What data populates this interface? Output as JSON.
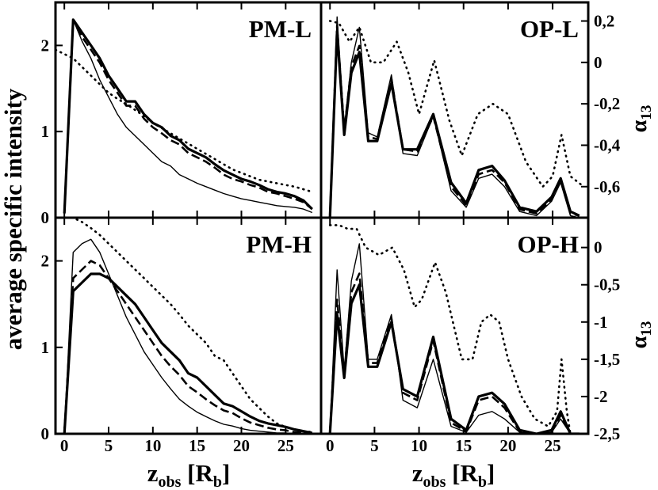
{
  "figure": {
    "ylabel_left": "average specific intensity",
    "xlabel_main": "z",
    "xlabel_sub": "obs",
    "xlabel_unit_open": " [R",
    "xlabel_unit_sub": "b",
    "xlabel_unit_close": "]",
    "ylabel_right_main": "α",
    "ylabel_right_sub": "13"
  },
  "chart_data": [
    {
      "type": "line",
      "panel": "top-left",
      "title": "PM-L",
      "xlim": [
        -1,
        29
      ],
      "ylim": [
        0,
        2.5
      ],
      "xticks": [
        0,
        5,
        10,
        15,
        20,
        25
      ],
      "yticks": [
        0,
        1,
        2
      ],
      "xtick_labels": [
        "0",
        "5",
        "10",
        "15",
        "20",
        "25"
      ],
      "ytick_labels": [
        "0",
        "1",
        "2"
      ],
      "series": [
        {
          "style": "thick",
          "x": [
            0,
            1,
            2,
            3,
            4,
            5,
            6,
            7,
            8,
            9,
            10,
            11,
            12,
            13,
            14,
            15,
            16,
            17,
            18,
            19,
            20,
            21,
            22,
            23,
            24,
            25,
            26,
            27,
            28
          ],
          "y": [
            0.05,
            2.3,
            2.15,
            2.0,
            1.85,
            1.65,
            1.5,
            1.35,
            1.35,
            1.2,
            1.1,
            1.05,
            0.95,
            0.9,
            0.8,
            0.75,
            0.7,
            0.62,
            0.55,
            0.5,
            0.45,
            0.42,
            0.38,
            0.33,
            0.3,
            0.28,
            0.25,
            0.2,
            0.1
          ]
        },
        {
          "style": "dashed",
          "x": [
            0,
            1,
            2,
            3,
            4,
            5,
            6,
            7,
            8,
            9,
            10,
            11,
            12,
            13,
            14,
            15,
            16,
            17,
            18,
            19,
            20,
            21,
            22,
            23,
            24,
            25,
            26,
            27,
            28
          ],
          "y": [
            0.05,
            2.3,
            2.1,
            1.95,
            1.8,
            1.6,
            1.45,
            1.3,
            1.3,
            1.15,
            1.05,
            0.98,
            0.9,
            0.85,
            0.75,
            0.7,
            0.65,
            0.58,
            0.5,
            0.45,
            0.42,
            0.38,
            0.35,
            0.3,
            0.28,
            0.25,
            0.22,
            0.18,
            0.1
          ]
        },
        {
          "style": "thin",
          "x": [
            0,
            1,
            2,
            3,
            4,
            5,
            6,
            7,
            8,
            9,
            10,
            11,
            12,
            13,
            14,
            15,
            16,
            17,
            18,
            19,
            20,
            21,
            22,
            23,
            24,
            25,
            26,
            27,
            28
          ],
          "y": [
            0.05,
            2.3,
            2.05,
            1.85,
            1.6,
            1.4,
            1.2,
            1.05,
            0.95,
            0.85,
            0.75,
            0.65,
            0.6,
            0.5,
            0.45,
            0.4,
            0.36,
            0.32,
            0.28,
            0.25,
            0.22,
            0.2,
            0.18,
            0.16,
            0.14,
            0.13,
            0.12,
            0.1,
            0.06
          ]
        },
        {
          "style": "dotted",
          "x": [
            -1,
            0,
            1,
            2,
            3,
            4,
            5,
            6,
            7,
            8,
            9,
            10,
            11,
            12,
            13,
            14,
            15,
            16,
            17,
            18,
            19,
            20,
            21,
            22,
            23,
            24,
            25,
            26,
            27,
            28
          ],
          "y": [
            1.95,
            1.9,
            1.85,
            1.75,
            1.65,
            1.55,
            1.45,
            1.38,
            1.32,
            1.25,
            1.18,
            1.1,
            1.04,
            0.98,
            0.92,
            0.86,
            0.8,
            0.74,
            0.68,
            0.62,
            0.56,
            0.52,
            0.48,
            0.44,
            0.42,
            0.4,
            0.38,
            0.36,
            0.33,
            0.3
          ]
        }
      ]
    },
    {
      "type": "line",
      "panel": "top-right",
      "title": "OP-L",
      "xlim": [
        -1,
        29
      ],
      "ylim": [
        -0.75,
        0.29
      ],
      "xticks": [
        0,
        5,
        10,
        15,
        20,
        25
      ],
      "yticks": [
        -0.6,
        -0.4,
        -0.2,
        0,
        0.2
      ],
      "xtick_labels": [
        "0",
        "5",
        "10",
        "15",
        "20",
        "25"
      ],
      "ytick_labels": [
        "-0,6",
        "-0,4",
        "-0,2",
        "0",
        "0,2"
      ],
      "series": [
        {
          "style": "thick",
          "x": [
            0,
            0.8,
            1.6,
            2.4,
            3.3,
            4.3,
            5.3,
            6.9,
            8.2,
            9.8,
            11.6,
            13.6,
            15.3,
            16.7,
            18.2,
            19.6,
            21.3,
            23.2,
            24.9,
            25.9,
            27.0,
            28.0
          ],
          "y": [
            -0.75,
            0.15,
            -0.35,
            -0.05,
            0.05,
            -0.38,
            -0.38,
            -0.1,
            -0.42,
            -0.42,
            -0.25,
            -0.58,
            -0.68,
            -0.52,
            -0.5,
            -0.57,
            -0.7,
            -0.72,
            -0.65,
            -0.56,
            -0.72,
            -0.74
          ]
        },
        {
          "style": "dashed",
          "x": [
            0,
            0.8,
            1.6,
            2.4,
            3.3,
            4.3,
            5.3,
            6.9,
            8.2,
            9.8,
            11.6,
            13.6,
            15.3,
            16.7,
            18.2,
            19.6,
            21.3,
            23.2,
            24.9,
            25.9,
            27.0,
            28.0
          ],
          "y": [
            -0.75,
            0.18,
            -0.33,
            -0.02,
            0.08,
            -0.36,
            -0.37,
            -0.08,
            -0.42,
            -0.43,
            -0.26,
            -0.6,
            -0.69,
            -0.54,
            -0.52,
            -0.58,
            -0.71,
            -0.73,
            -0.66,
            -0.57,
            -0.73,
            -0.74
          ]
        },
        {
          "style": "thin",
          "x": [
            0,
            0.8,
            1.6,
            2.4,
            3.3,
            4.3,
            5.3,
            6.9,
            8.2,
            9.8,
            11.6,
            13.6,
            15.3,
            16.7,
            18.2,
            19.6,
            21.3,
            23.2,
            24.9,
            25.9,
            27.0,
            28.0
          ],
          "y": [
            -0.75,
            0.22,
            -0.32,
            0.0,
            0.17,
            -0.34,
            -0.36,
            -0.06,
            -0.44,
            -0.45,
            -0.26,
            -0.62,
            -0.7,
            -0.56,
            -0.54,
            -0.6,
            -0.72,
            -0.74,
            -0.67,
            -0.58,
            -0.74,
            -0.75
          ]
        },
        {
          "style": "dotted",
          "x": [
            0,
            1,
            2.2,
            3.3,
            4.6,
            6.0,
            7.5,
            8.8,
            10.0,
            11.7,
            13.4,
            14.8,
            16.6,
            18.3,
            20.0,
            22.0,
            23.9,
            25.0,
            26.0,
            27.0,
            28.5
          ],
          "y": [
            0.2,
            0.19,
            0.1,
            0.17,
            0.0,
            0.0,
            0.1,
            -0.05,
            -0.25,
            0.01,
            -0.28,
            -0.45,
            -0.25,
            -0.2,
            -0.25,
            -0.48,
            -0.6,
            -0.55,
            -0.35,
            -0.55,
            -0.6
          ]
        }
      ]
    },
    {
      "type": "line",
      "panel": "bottom-left",
      "title": "PM-H",
      "xlim": [
        -1,
        29
      ],
      "ylim": [
        0,
        2.5
      ],
      "xticks": [
        0,
        5,
        10,
        15,
        20,
        25
      ],
      "yticks": [
        0,
        1,
        2
      ],
      "xtick_labels": [
        "0",
        "5",
        "10",
        "15",
        "20",
        "25"
      ],
      "ytick_labels": [
        "0",
        "1",
        "2"
      ],
      "series": [
        {
          "style": "thick",
          "x": [
            0,
            1,
            2,
            3,
            4,
            5,
            6,
            7,
            8,
            9,
            10,
            11,
            12,
            13,
            14,
            15,
            16,
            17,
            18,
            19,
            20,
            21,
            22,
            23,
            24,
            25,
            26,
            27,
            28
          ],
          "y": [
            0.0,
            1.65,
            1.75,
            1.85,
            1.85,
            1.8,
            1.7,
            1.6,
            1.5,
            1.35,
            1.2,
            1.05,
            0.95,
            0.85,
            0.7,
            0.65,
            0.55,
            0.45,
            0.35,
            0.32,
            0.26,
            0.2,
            0.15,
            0.12,
            0.1,
            0.08,
            0.05,
            0.03,
            0.01
          ]
        },
        {
          "style": "dashed",
          "x": [
            0,
            1,
            2,
            3,
            4,
            5,
            6,
            7,
            8,
            9,
            10,
            11,
            12,
            13,
            14,
            15,
            16,
            17,
            18,
            19,
            20,
            21,
            22,
            23,
            24,
            25,
            26,
            27,
            28
          ],
          "y": [
            0.0,
            1.8,
            1.9,
            2.0,
            1.95,
            1.8,
            1.65,
            1.5,
            1.35,
            1.2,
            1.05,
            0.9,
            0.78,
            0.68,
            0.55,
            0.48,
            0.4,
            0.33,
            0.27,
            0.24,
            0.18,
            0.13,
            0.1,
            0.07,
            0.05,
            0.04,
            0.02,
            0.01,
            0.0
          ]
        },
        {
          "style": "thin",
          "x": [
            0,
            1,
            2,
            3,
            4,
            5,
            6,
            7,
            8,
            9,
            10,
            11,
            12,
            13,
            14,
            15,
            16,
            17,
            18,
            19,
            20,
            21,
            22,
            23,
            24,
            25,
            26,
            27,
            28
          ],
          "y": [
            0.0,
            2.1,
            2.2,
            2.25,
            2.1,
            1.85,
            1.6,
            1.35,
            1.15,
            0.95,
            0.8,
            0.65,
            0.52,
            0.4,
            0.32,
            0.25,
            0.2,
            0.15,
            0.11,
            0.09,
            0.06,
            0.04,
            0.03,
            0.02,
            0.01,
            0.01,
            0.0,
            0.0,
            0.0
          ]
        },
        {
          "style": "dotted",
          "x": [
            -1,
            0,
            1,
            2,
            3,
            4,
            5,
            6,
            7,
            8,
            9,
            10,
            11,
            12,
            13,
            14,
            15,
            16,
            17,
            18,
            19,
            20,
            21,
            22,
            23,
            24,
            25,
            26,
            27,
            28
          ],
          "y": [
            2.55,
            2.52,
            2.5,
            2.45,
            2.38,
            2.3,
            2.2,
            2.1,
            2.0,
            1.9,
            1.8,
            1.7,
            1.6,
            1.5,
            1.38,
            1.25,
            1.15,
            1.05,
            0.9,
            0.85,
            0.7,
            0.55,
            0.4,
            0.3,
            0.2,
            0.12,
            0.08,
            0.05,
            0.03,
            0.02
          ]
        }
      ]
    },
    {
      "type": "line",
      "panel": "bottom-right",
      "title": "OP-H",
      "xlim": [
        -1,
        29
      ],
      "ylim": [
        -2.5,
        0.4
      ],
      "xticks": [
        0,
        5,
        10,
        15,
        20,
        25
      ],
      "yticks": [
        -2.5,
        -2,
        -1.5,
        -1,
        -0.5,
        0
      ],
      "xtick_labels": [
        "0",
        "5",
        "10",
        "15",
        "20",
        "25"
      ],
      "ytick_labels": [
        "-2,5",
        "-2",
        "-1,5",
        "-1",
        "-0,5",
        "0"
      ],
      "series": [
        {
          "style": "thick",
          "x": [
            0,
            0.8,
            1.6,
            2.4,
            3.3,
            4.3,
            5.3,
            6.9,
            8.2,
            9.8,
            11.6,
            13.6,
            15.3,
            16.7,
            18.2,
            19.6,
            21.3,
            23.2,
            24.9,
            25.9,
            27.0,
            28.0
          ],
          "y": [
            -2.5,
            -0.9,
            -1.75,
            -0.75,
            -0.5,
            -1.6,
            -1.6,
            -1.0,
            -1.9,
            -2.0,
            -1.2,
            -2.3,
            -2.45,
            -2.0,
            -1.95,
            -2.1,
            -2.45,
            -2.5,
            -2.45,
            -2.2,
            -2.5,
            -2.5
          ]
        },
        {
          "style": "dashed",
          "x": [
            0,
            0.8,
            1.6,
            2.4,
            3.3,
            4.3,
            5.3,
            6.9,
            8.2,
            9.8,
            11.6,
            13.6,
            15.3,
            16.7,
            18.2,
            19.6,
            21.3,
            23.2,
            24.9,
            25.9,
            27.0,
            28.0
          ],
          "y": [
            -2.5,
            -0.7,
            -1.7,
            -0.6,
            -0.35,
            -1.55,
            -1.55,
            -0.95,
            -1.95,
            -2.05,
            -1.25,
            -2.35,
            -2.47,
            -2.05,
            -2.0,
            -2.15,
            -2.47,
            -2.5,
            -2.47,
            -2.25,
            -2.5,
            -2.5
          ]
        },
        {
          "style": "thin",
          "x": [
            0,
            0.8,
            1.6,
            2.4,
            3.3,
            4.3,
            5.3,
            6.9,
            8.2,
            9.8,
            11.6,
            13.6,
            15.3,
            16.7,
            18.2,
            19.6,
            21.3,
            23.2,
            24.9,
            25.9,
            27.0,
            28.0
          ],
          "y": [
            -2.5,
            -0.3,
            -1.65,
            -0.45,
            0.05,
            -1.5,
            -1.5,
            -0.9,
            -2.05,
            -2.15,
            -1.5,
            -2.4,
            -2.48,
            -2.25,
            -2.2,
            -2.3,
            -2.48,
            -2.5,
            -2.48,
            -2.3,
            -2.5,
            -2.5
          ]
        },
        {
          "style": "dotted",
          "x": [
            0,
            1,
            2,
            3,
            4,
            5.5,
            7,
            8.3,
            9.5,
            10.3,
            11.8,
            13.0,
            14.8,
            16,
            17,
            18,
            19,
            20,
            21.5,
            23,
            24.5,
            25.5,
            26.0,
            26.6,
            27.0
          ],
          "y": [
            0.3,
            0.3,
            0.25,
            0.25,
            0.0,
            -0.1,
            0.0,
            -0.3,
            -0.8,
            -0.7,
            -0.2,
            -0.6,
            -1.5,
            -1.5,
            -1.0,
            -0.9,
            -1.0,
            -1.5,
            -2.0,
            -2.3,
            -2.4,
            -2.2,
            -1.5,
            -2.2,
            -2.5
          ]
        }
      ]
    }
  ]
}
